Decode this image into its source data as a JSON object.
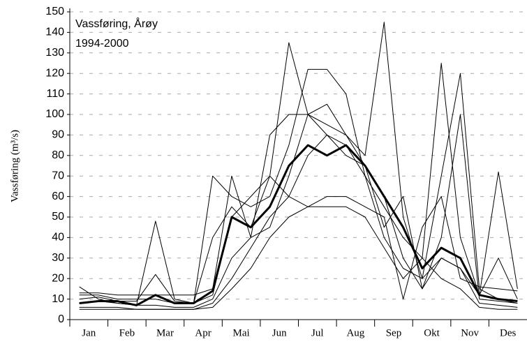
{
  "chart_data": {
    "type": "line",
    "annotations": [
      "Vassføring, Årøy",
      "1994-2000"
    ],
    "ylabel": "Vassføring (m³/s)",
    "categories": [
      "Jan",
      "Feb",
      "Mar",
      "Apr",
      "Mai",
      "Jun",
      "Jul",
      "Aug",
      "Sep",
      "Okt",
      "Nov",
      "Des"
    ],
    "x": [
      0.25,
      0.75,
      1.25,
      1.75,
      2.25,
      2.75,
      3.25,
      3.75,
      4.25,
      4.75,
      5.25,
      5.75,
      6.25,
      6.75,
      7.25,
      7.75,
      8.25,
      8.75,
      9.25,
      9.75,
      10.25,
      10.75,
      11.25,
      11.75
    ],
    "xlim": [
      0,
      12
    ],
    "ylim": [
      0,
      150
    ],
    "yticks": [
      0,
      10,
      20,
      30,
      40,
      50,
      60,
      70,
      80,
      90,
      100,
      110,
      120,
      130,
      140,
      150
    ],
    "grid": true,
    "series": [
      {
        "color": "#000",
        "linewidth": 1,
        "values": [
          16,
          10,
          8,
          7,
          48,
          10,
          8,
          40,
          55,
          45,
          70,
          135,
          100,
          95,
          90,
          80,
          145,
          50,
          20,
          70,
          120,
          15,
          10,
          8
        ]
      },
      {
        "color": "#000",
        "linewidth": 1,
        "values": [
          12,
          12,
          10,
          10,
          10,
          8,
          8,
          70,
          60,
          55,
          60,
          85,
          122,
          122,
          110,
          70,
          55,
          40,
          30,
          125,
          40,
          12,
          72,
          15
        ]
      },
      {
        "color": "#000",
        "linewidth": 1,
        "values": [
          8,
          9,
          8,
          7,
          7,
          6,
          6,
          10,
          30,
          40,
          45,
          70,
          100,
          105,
          90,
          75,
          60,
          30,
          15,
          40,
          100,
          10,
          9,
          8
        ]
      },
      {
        "color": "#000",
        "linewidth": 1,
        "values": [
          6,
          6,
          6,
          5,
          5,
          5,
          5,
          8,
          20,
          35,
          50,
          60,
          80,
          90,
          85,
          70,
          40,
          25,
          20,
          30,
          25,
          8,
          7,
          6
        ]
      },
      {
        "color": "#000",
        "linewidth": 1,
        "values": [
          10,
          11,
          9,
          9,
          22,
          9,
          8,
          12,
          50,
          60,
          70,
          60,
          55,
          60,
          60,
          55,
          50,
          10,
          45,
          60,
          20,
          16,
          15,
          14
        ]
      },
      {
        "color": "#000",
        "linewidth": 1,
        "values": [
          5,
          5,
          5,
          5,
          5,
          5,
          5,
          6,
          15,
          25,
          40,
          50,
          55,
          55,
          55,
          50,
          35,
          20,
          30,
          20,
          15,
          6,
          5,
          5
        ]
      },
      {
        "color": "#000",
        "linewidth": 1,
        "values": [
          13,
          13,
          12,
          12,
          12,
          12,
          12,
          15,
          70,
          40,
          90,
          100,
          100,
          90,
          80,
          75,
          45,
          60,
          15,
          30,
          25,
          12,
          30,
          10
        ]
      },
      {
        "color": "#000",
        "linewidth": 3,
        "values": [
          8,
          9,
          9,
          7,
          12,
          8,
          8,
          14,
          50,
          45,
          55,
          75,
          85,
          80,
          85,
          75,
          60,
          45,
          25,
          35,
          30,
          12,
          10,
          9
        ]
      }
    ]
  }
}
